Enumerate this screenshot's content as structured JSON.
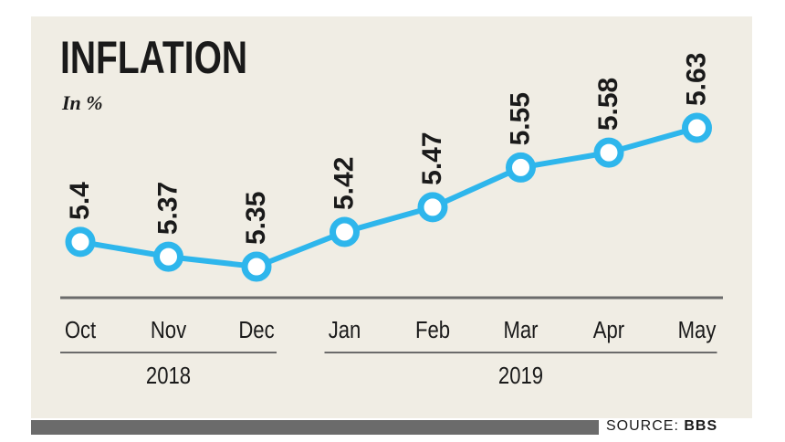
{
  "chart_data": {
    "type": "line",
    "title": "INFLATION",
    "subtitle": "In %",
    "categories": [
      "Oct",
      "Nov",
      "Dec",
      "Jan",
      "Feb",
      "Mar",
      "Apr",
      "May"
    ],
    "values": [
      5.4,
      5.37,
      5.35,
      5.42,
      5.47,
      5.55,
      5.58,
      5.63
    ],
    "value_labels": [
      "5.4",
      "5.37",
      "5.35",
      "5.42",
      "5.47",
      "5.55",
      "5.58",
      "5.63"
    ],
    "year_groups": [
      {
        "label": "2018",
        "from": 0,
        "to": 2
      },
      {
        "label": "2019",
        "from": 3,
        "to": 7
      }
    ],
    "ylim": [
      5.28,
      5.7
    ],
    "grid": false,
    "line_color": "#2eb6ec"
  },
  "footer": {
    "source_prefix": "SOURCE: ",
    "source_name": "BBS"
  }
}
